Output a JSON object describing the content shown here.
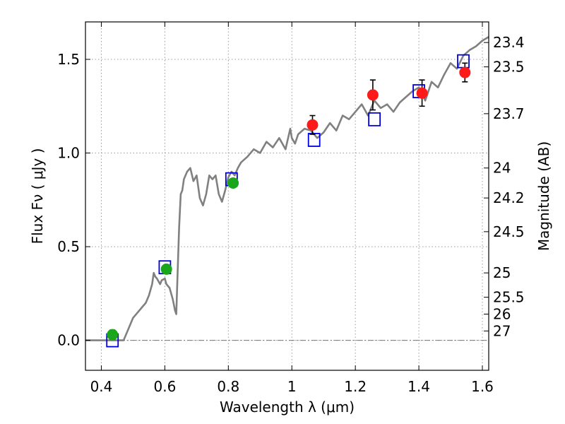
{
  "chart_data": {
    "type": "scatter",
    "title": "",
    "xlabel": "Wavelength  λ (μm)",
    "ylabel": "Flux  Fν  ( μJy )",
    "ylabel_right": "Magnitude (AB)",
    "xlim": [
      0.35,
      1.62
    ],
    "ylim": [
      -0.16,
      1.7
    ],
    "grid": true,
    "x_ticks": [
      0.4,
      0.6,
      0.8,
      1.0,
      1.2,
      1.4,
      1.6
    ],
    "x_tick_labels": [
      "0.4",
      "0.6",
      "0.8",
      "1",
      "1.2",
      "1.4",
      "1.6"
    ],
    "y_ticks": [
      0.0,
      0.5,
      1.0,
      1.5
    ],
    "y_tick_labels": [
      "0.0",
      "0.5",
      "1.0",
      "1.5"
    ],
    "right_ticks": [
      {
        "flux": 1.59,
        "label": "23.4"
      },
      {
        "flux": 1.46,
        "label": "23.5"
      },
      {
        "flux": 1.21,
        "label": "23.7"
      },
      {
        "flux": 0.92,
        "label": "24"
      },
      {
        "flux": 0.76,
        "label": "24.2"
      },
      {
        "flux": 0.58,
        "label": "24.5"
      },
      {
        "flux": 0.36,
        "label": "25"
      },
      {
        "flux": 0.23,
        "label": "25.5"
      },
      {
        "flux": 0.14,
        "label": "26"
      },
      {
        "flux": 0.05,
        "label": "27"
      }
    ],
    "colors": {
      "template": "#808080",
      "green_points": "#1aa61a",
      "red_points": "#ff1a1a",
      "model_squares": "#0000dd",
      "errorbars": "#000000"
    },
    "series": [
      {
        "name": "template spectrum",
        "kind": "line",
        "x": [
          0.35,
          0.47,
          0.485,
          0.5,
          0.515,
          0.53,
          0.54,
          0.55,
          0.56,
          0.565,
          0.57,
          0.575,
          0.585,
          0.59,
          0.6,
          0.605,
          0.615,
          0.625,
          0.632,
          0.636,
          0.64,
          0.645,
          0.65,
          0.655,
          0.66,
          0.67,
          0.68,
          0.69,
          0.7,
          0.71,
          0.72,
          0.73,
          0.74,
          0.75,
          0.76,
          0.77,
          0.78,
          0.79,
          0.8,
          0.81,
          0.82,
          0.83,
          0.84,
          0.86,
          0.88,
          0.9,
          0.92,
          0.94,
          0.96,
          0.98,
          0.995,
          1.0,
          1.01,
          1.02,
          1.04,
          1.06,
          1.08,
          1.1,
          1.12,
          1.14,
          1.16,
          1.18,
          1.2,
          1.22,
          1.24,
          1.26,
          1.28,
          1.3,
          1.32,
          1.34,
          1.36,
          1.38,
          1.4,
          1.42,
          1.44,
          1.46,
          1.48,
          1.5,
          1.52,
          1.54,
          1.56,
          1.58,
          1.6,
          1.62
        ],
        "y": [
          0.0,
          0.0,
          0.06,
          0.12,
          0.15,
          0.18,
          0.2,
          0.24,
          0.3,
          0.36,
          0.34,
          0.33,
          0.3,
          0.32,
          0.33,
          0.3,
          0.28,
          0.22,
          0.16,
          0.14,
          0.35,
          0.6,
          0.78,
          0.8,
          0.86,
          0.9,
          0.92,
          0.85,
          0.88,
          0.76,
          0.72,
          0.78,
          0.88,
          0.86,
          0.88,
          0.78,
          0.74,
          0.8,
          0.87,
          0.9,
          0.88,
          0.92,
          0.95,
          0.98,
          1.02,
          1.0,
          1.06,
          1.03,
          1.08,
          1.02,
          1.13,
          1.08,
          1.05,
          1.1,
          1.13,
          1.12,
          1.08,
          1.11,
          1.16,
          1.12,
          1.2,
          1.18,
          1.22,
          1.26,
          1.2,
          1.28,
          1.24,
          1.26,
          1.22,
          1.27,
          1.3,
          1.33,
          1.35,
          1.28,
          1.38,
          1.35,
          1.42,
          1.48,
          1.45,
          1.52,
          1.55,
          1.57,
          1.6,
          1.62
        ]
      },
      {
        "name": "measured flux (green)",
        "kind": "points",
        "x": [
          0.435,
          0.605,
          0.815
        ],
        "y": [
          0.03,
          0.38,
          0.84
        ],
        "yerr": [
          0.025,
          0.02,
          0.02
        ]
      },
      {
        "name": "measured flux (red)",
        "kind": "points",
        "x": [
          1.065,
          1.255,
          1.41,
          1.545
        ],
        "y": [
          1.15,
          1.31,
          1.32,
          1.43
        ],
        "yerr": [
          0.05,
          0.08,
          0.07,
          0.05
        ]
      },
      {
        "name": "model photometry",
        "kind": "squares",
        "x": [
          0.435,
          0.6,
          0.81,
          1.07,
          1.26,
          1.4,
          1.54
        ],
        "y": [
          0.0,
          0.39,
          0.86,
          1.07,
          1.18,
          1.33,
          1.49
        ]
      }
    ]
  }
}
